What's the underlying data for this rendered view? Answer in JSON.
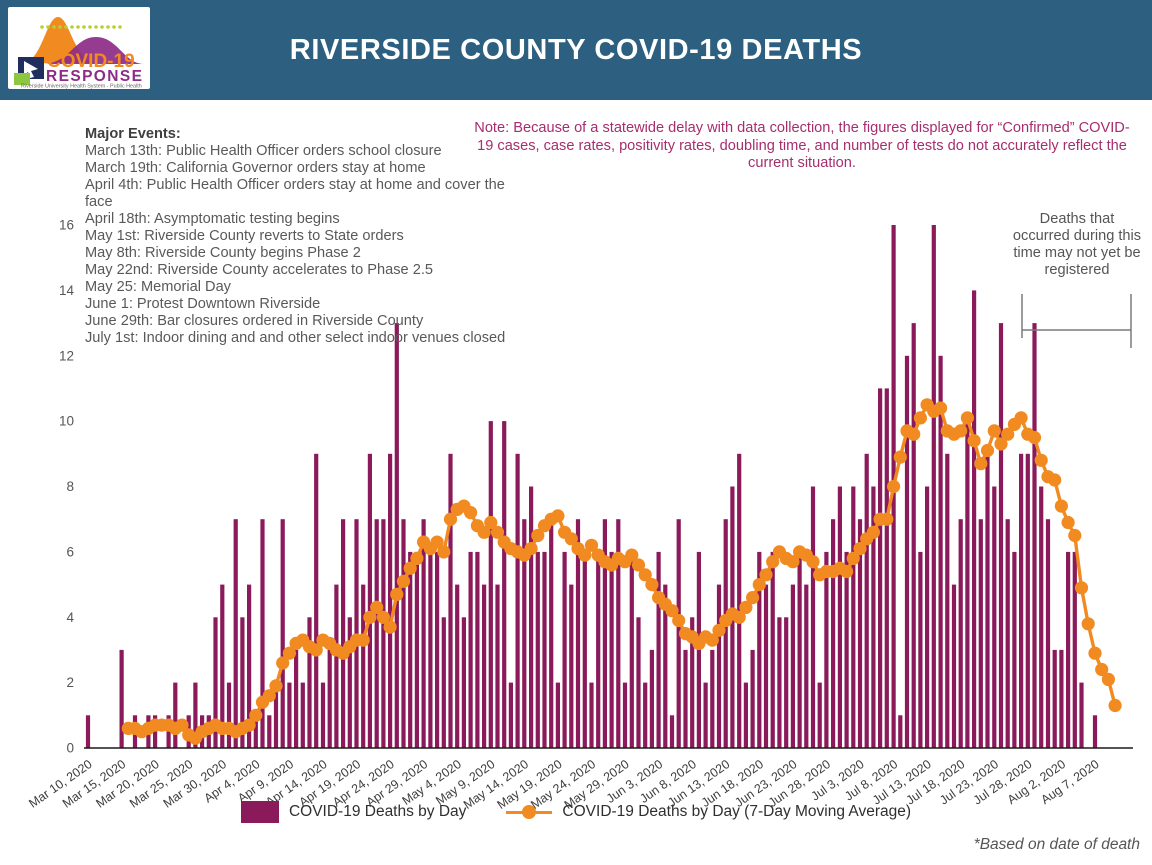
{
  "header": {
    "title": "RIVERSIDE COUNTY COVID-19 DEATHS",
    "logo": {
      "line1": "COVID-19",
      "line2": "RESPONSE",
      "tagline": "Riverside University Health System - Public Health"
    }
  },
  "major_events": {
    "heading": "Major Events:",
    "items": [
      "March 13th: Public Health Officer orders school closure",
      "March 19th: California Governor orders stay at home",
      "April 4th: Public Health Officer orders stay at home and cover the face",
      "April 18th: Asymptomatic testing begins",
      "May 1st: Riverside County reverts to State orders",
      "May 8th: Riverside County begins Phase 2",
      "May 22nd: Riverside County accelerates to Phase 2.5",
      "May 25: Memorial Day",
      "June 1: Protest Downtown Riverside",
      "June 29th: Bar closures ordered in Riverside County",
      "July 1st: Indoor dining and and other select indoor venues closed"
    ]
  },
  "note": "Note: Because of a statewide delay with data collection, the figures displayed for “Confirmed” COVID-19 cases, case rates, positivity rates, doubling time, and number of tests do not accurately reflect the current situation.",
  "annotation": "Deaths that occurred during this time may not yet be registered",
  "legend": {
    "bars_label": "COVID-19 Deaths by Day",
    "line_label": "COVID-19 Deaths by Day (7-Day Moving Average)"
  },
  "footnote": "*Based on date of death",
  "colors": {
    "header_bg": "#2D5F80",
    "bar": "#8B1A5B",
    "line": "#F18A20",
    "note_text": "#A62D6E",
    "axis_text": "#3D3D3D",
    "gray_text": "#595959",
    "logo_orange": "#F18A20",
    "logo_purple": "#8D2B87",
    "logo_green": "#B9CF35",
    "logo_navy": "#1F2E5C"
  },
  "chart_data": {
    "type": "bar",
    "title": "RIVERSIDE COUNTY COVID-19 DEATHS",
    "xlabel": "",
    "ylabel": "",
    "ylim": [
      0,
      16
    ],
    "yticks": [
      0,
      2,
      4,
      6,
      8,
      10,
      12,
      14,
      16
    ],
    "grid": false,
    "legend_position": "bottom",
    "start_date": "2020-03-10",
    "tick_interval_days": 5,
    "x_tick_labels": [
      "Mar 10, 2020",
      "Mar 15, 2020",
      "Mar 20, 2020",
      "Mar 25, 2020",
      "Mar 30, 2020",
      "Apr 4, 2020",
      "Apr 9, 2020",
      "Apr 14, 2020",
      "Apr 19, 2020",
      "Apr 24, 2020",
      "Apr 29, 2020",
      "May 4, 2020",
      "May 9, 2020",
      "May 14, 2020",
      "May 19, 2020",
      "May 24, 2020",
      "May 29, 2020",
      "Jun 3, 2020",
      "Jun 8, 2020",
      "Jun 13, 2020",
      "Jun 18, 2020",
      "Jun 23, 2020",
      "Jun 28, 2020",
      "Jul 3, 2020",
      "Jul 8, 2020",
      "Jul 13, 2020",
      "Jul 18, 2020",
      "Jul 23, 2020",
      "Jul 28, 2020",
      "Aug 2, 2020",
      "Aug 7, 2020"
    ],
    "series": [
      {
        "name": "COVID-19 Deaths by Day",
        "type": "bar",
        "values": [
          1,
          0,
          0,
          0,
          0,
          3,
          0,
          1,
          0,
          1,
          1,
          0,
          1,
          2,
          0,
          1,
          2,
          1,
          1,
          4,
          5,
          2,
          7,
          4,
          5,
          1,
          7,
          1,
          2,
          7,
          2,
          3,
          2,
          4,
          9,
          2,
          3,
          5,
          7,
          4,
          7,
          5,
          9,
          7,
          7,
          9,
          13,
          7,
          6,
          6,
          7,
          6,
          6,
          4,
          9,
          5,
          4,
          6,
          6,
          5,
          10,
          5,
          10,
          2,
          9,
          7,
          8,
          6,
          6,
          7,
          2,
          6,
          5,
          7,
          6,
          2,
          6,
          7,
          6,
          7,
          2,
          6,
          4,
          2,
          3,
          6,
          5,
          1,
          7,
          3,
          4,
          6,
          2,
          3,
          5,
          7,
          8,
          9,
          2,
          3,
          6,
          5,
          6,
          4,
          4,
          5,
          6,
          5,
          8,
          2,
          6,
          7,
          8,
          6,
          8,
          7,
          9,
          8,
          11,
          11,
          16,
          1,
          12,
          13,
          6,
          8,
          16,
          12,
          9,
          5,
          7,
          10,
          14,
          7,
          9,
          8,
          13,
          7,
          6,
          9,
          9,
          13,
          8,
          7,
          3,
          3,
          6,
          6,
          2,
          0,
          1,
          0,
          0,
          0
        ]
      },
      {
        "name": "COVID-19 Deaths by Day (7-Day Moving Average)",
        "type": "line",
        "values": [
          null,
          null,
          null,
          null,
          null,
          null,
          0.6,
          0.6,
          0.5,
          0.6,
          0.7,
          0.7,
          0.7,
          0.6,
          0.7,
          0.4,
          0.3,
          0.5,
          0.6,
          0.7,
          0.6,
          0.6,
          0.5,
          0.6,
          0.7,
          1.0,
          1.4,
          1.6,
          1.9,
          2.6,
          2.9,
          3.2,
          3.3,
          3.1,
          3.0,
          3.3,
          3.2,
          3.0,
          2.9,
          3.1,
          3.3,
          3.3,
          4.0,
          4.3,
          4.0,
          3.7,
          4.7,
          5.1,
          5.5,
          5.8,
          6.3,
          6.1,
          6.3,
          6.0,
          7.0,
          7.3,
          7.4,
          7.2,
          6.8,
          6.6,
          6.9,
          6.6,
          6.3,
          6.1,
          6.0,
          5.9,
          6.1,
          6.5,
          6.8,
          7.0,
          7.1,
          6.6,
          6.4,
          6.1,
          5.9,
          6.2,
          5.9,
          5.7,
          5.6,
          5.8,
          5.7,
          5.9,
          5.6,
          5.3,
          5.0,
          4.6,
          4.4,
          4.2,
          3.9,
          3.5,
          3.4,
          3.2,
          3.4,
          3.3,
          3.6,
          3.9,
          4.1,
          4.0,
          4.3,
          4.6,
          5.0,
          5.3,
          5.7,
          6.0,
          5.8,
          5.7,
          6.0,
          5.9,
          5.7,
          5.3,
          5.4,
          5.4,
          5.5,
          5.4,
          5.8,
          6.1,
          6.4,
          6.6,
          7.0,
          7.0,
          8.0,
          8.9,
          9.7,
          9.6,
          10.1,
          10.5,
          10.3,
          10.4,
          9.7,
          9.6,
          9.7,
          10.1,
          9.4,
          8.7,
          9.1,
          9.7,
          9.3,
          9.6,
          9.9,
          10.1,
          9.6,
          9.5,
          8.8,
          8.3,
          8.2,
          7.4,
          6.9,
          6.5,
          4.9,
          3.8,
          2.9,
          2.4,
          2.1,
          1.3
        ]
      }
    ],
    "annotations": [
      {
        "text": "Deaths that occurred during this time may not yet be registered",
        "x_range_labels": [
          "Jul 27, 2020",
          "Aug 12, 2020"
        ]
      }
    ],
    "footnote": "*Based on date of death"
  }
}
